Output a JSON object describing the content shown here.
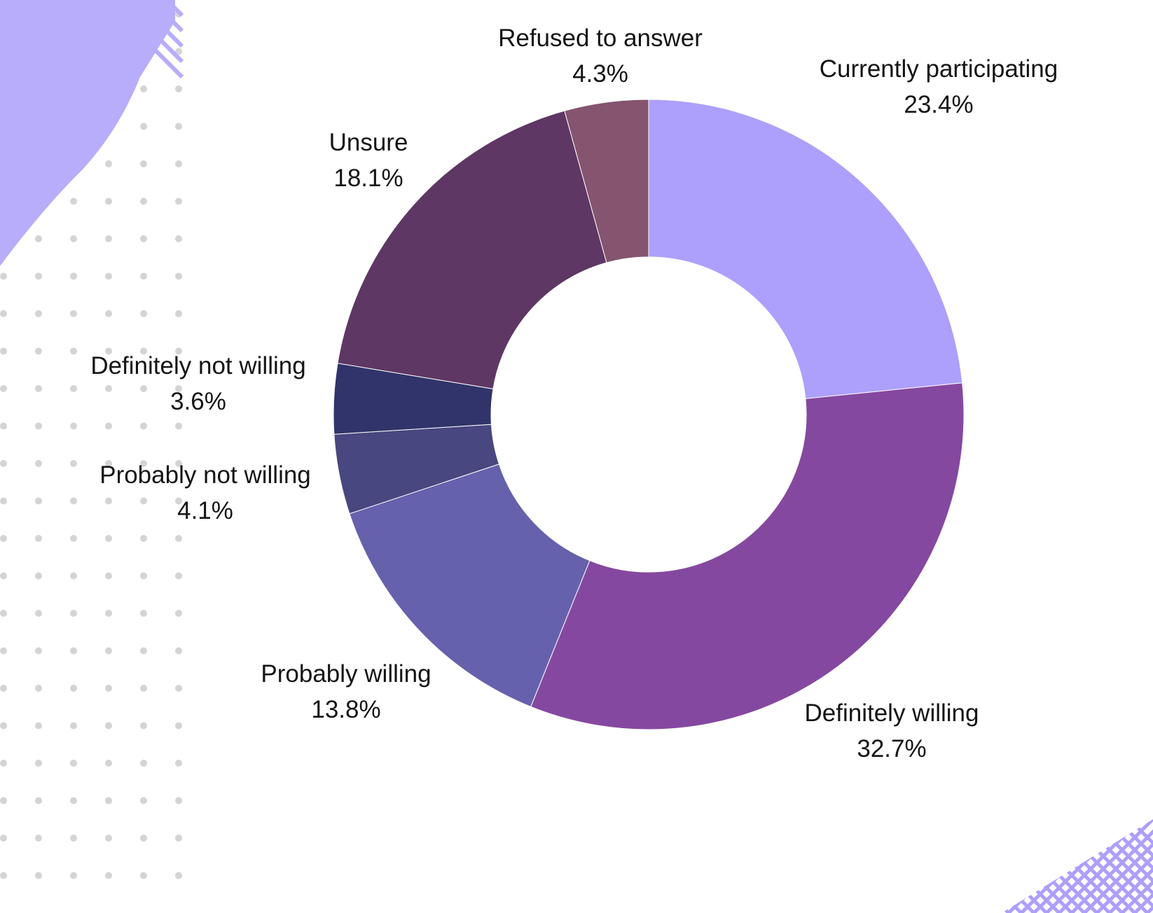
{
  "chart_data": {
    "type": "pie",
    "donut": true,
    "title": "",
    "unit": "%",
    "slices": [
      {
        "label": "Currently participating",
        "value": 23.4,
        "display": "23.4%",
        "color": "#ad9ffc"
      },
      {
        "label": "Definitely willing",
        "value": 32.7,
        "display": "32.7%",
        "color": "#8548a0"
      },
      {
        "label": "Probably willing",
        "value": 13.8,
        "display": "13.8%",
        "color": "#6661ac"
      },
      {
        "label": "Probably not willing",
        "value": 4.1,
        "display": "4.1%",
        "color": "#484780"
      },
      {
        "label": "Definitely not willing",
        "value": 3.6,
        "display": "3.6%",
        "color": "#30346a"
      },
      {
        "label": "Unsure",
        "value": 18.1,
        "display": "18.1%",
        "color": "#5e3764"
      },
      {
        "label": "Refused to answer",
        "value": 4.3,
        "display": "4.3%",
        "color": "#85546f"
      }
    ]
  },
  "decor": {
    "accent_color": "#b7adfb",
    "dot_color": "#d4d4d4",
    "hatch_color": "#ad9ffc"
  }
}
